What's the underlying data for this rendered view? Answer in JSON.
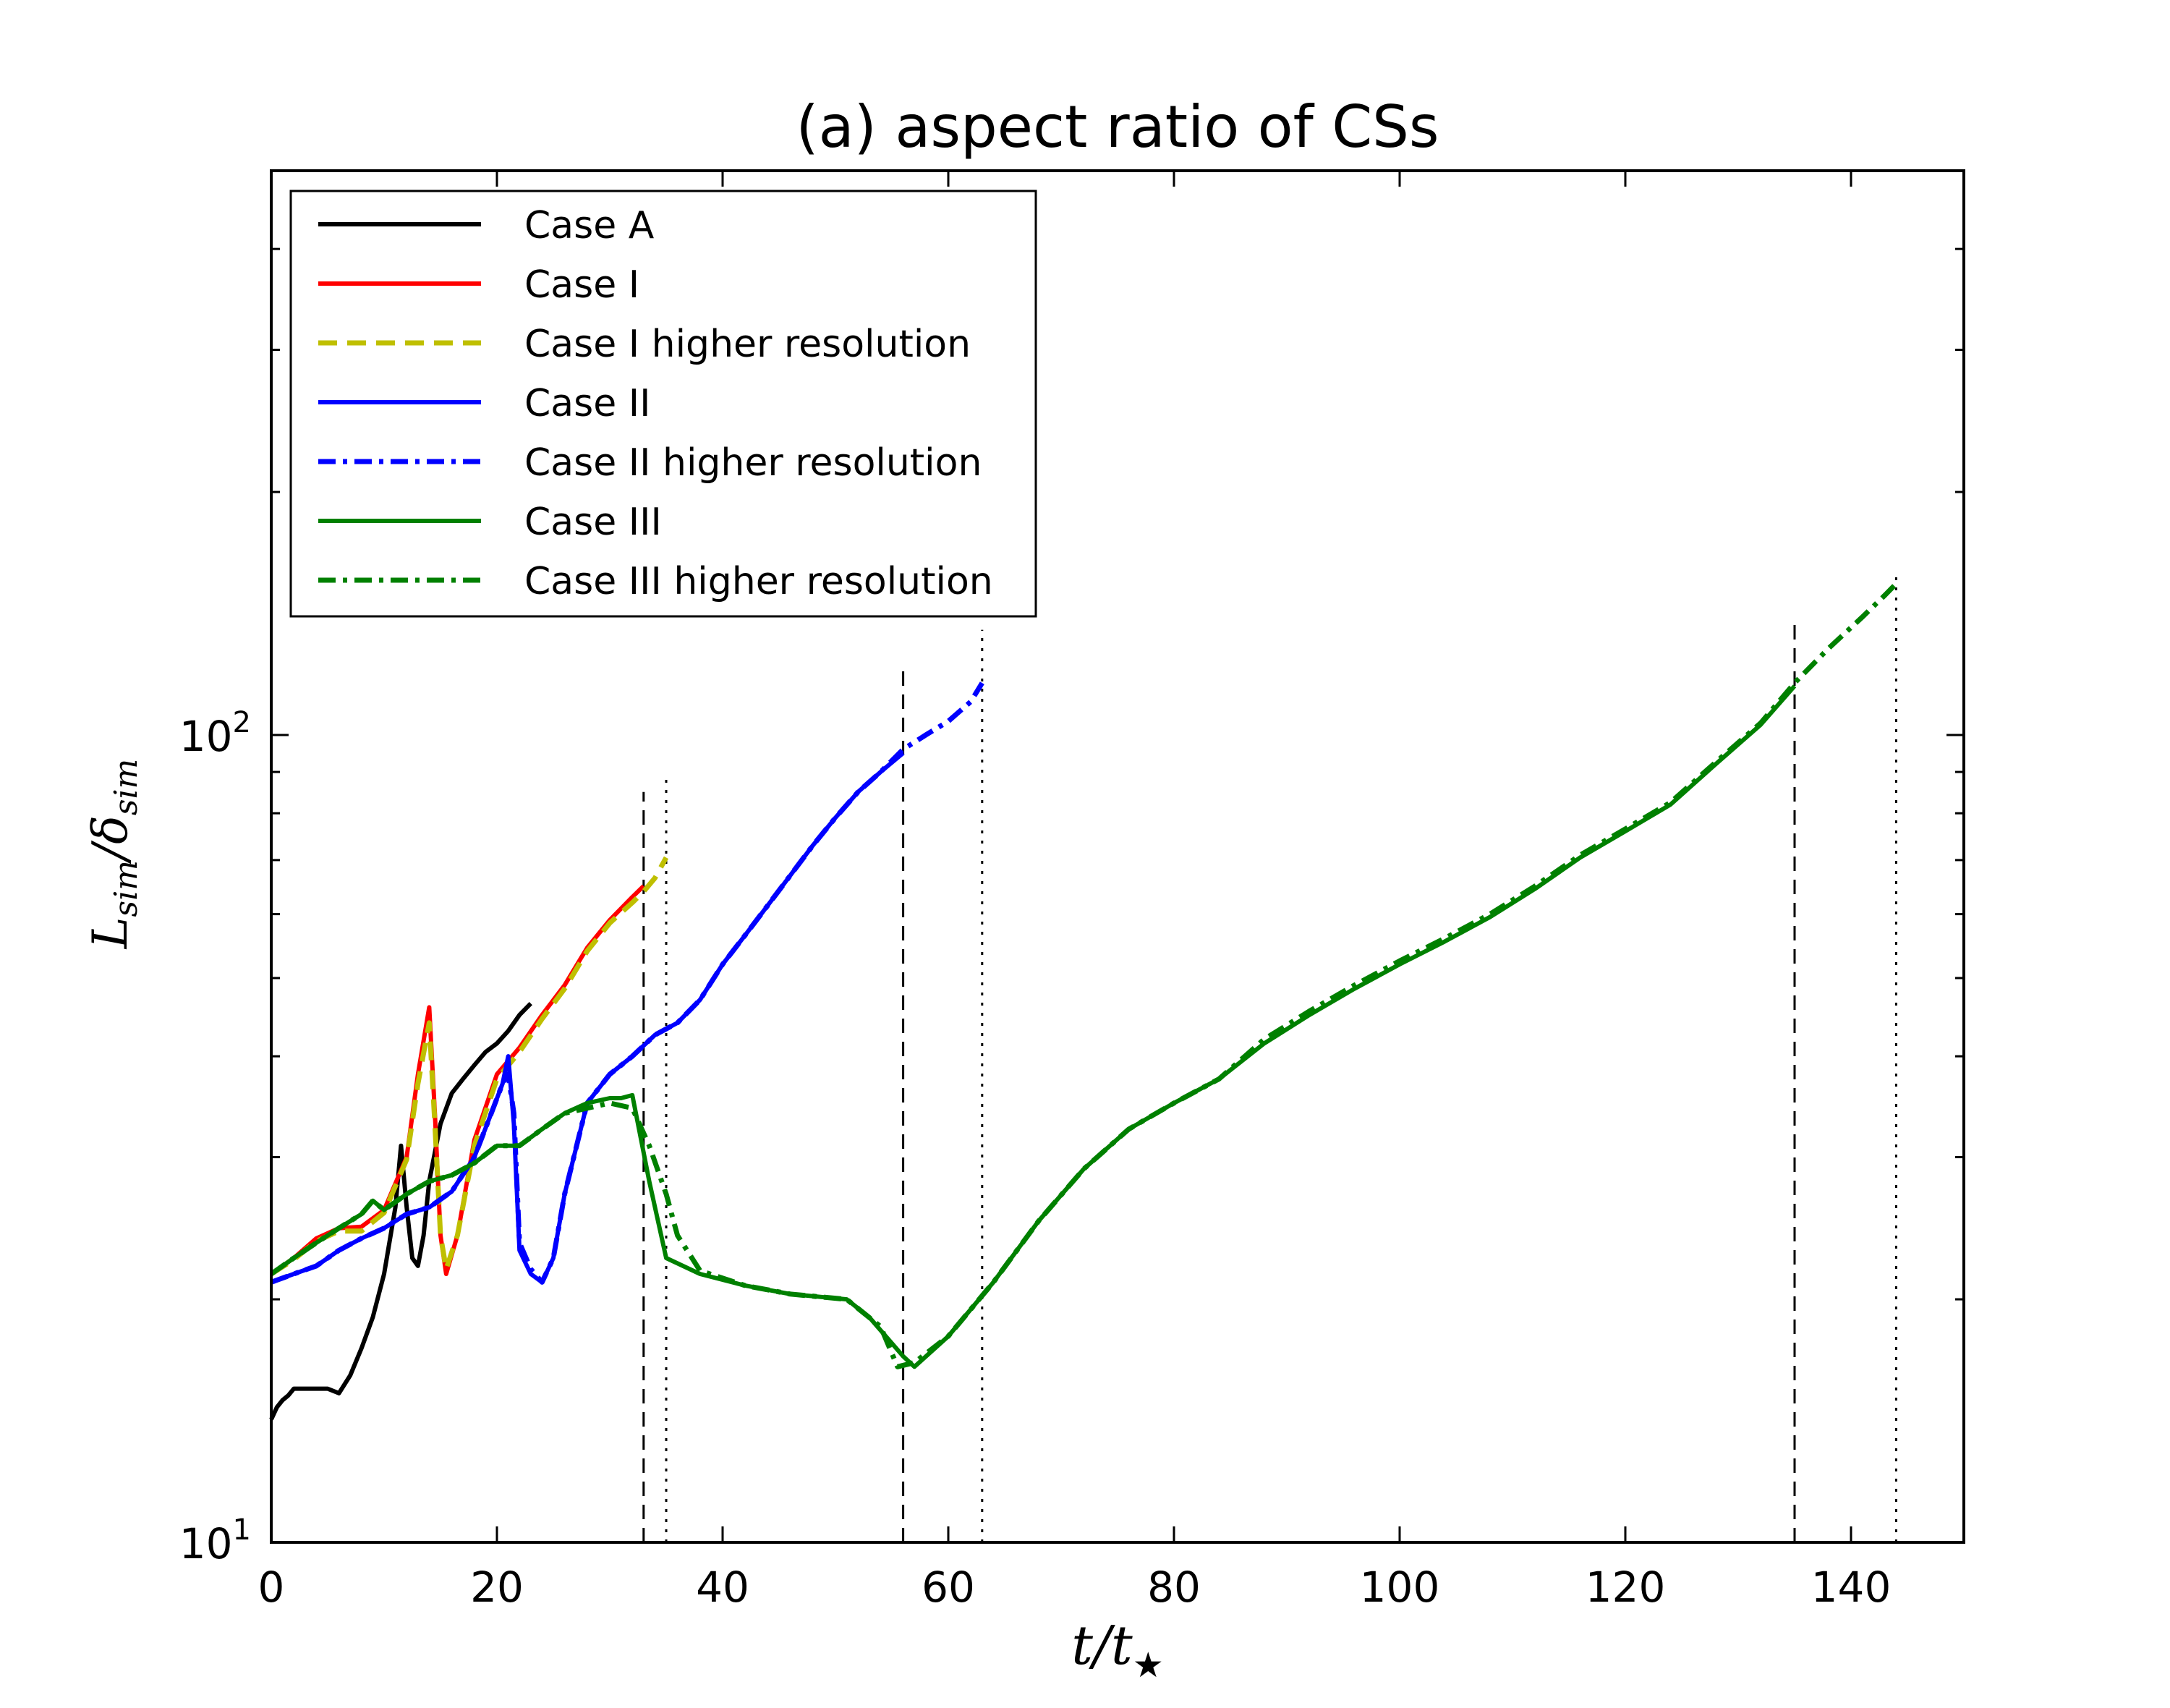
{
  "chart_data": {
    "type": "line",
    "title": "(a) aspect ratio of CSs",
    "xlabel": "t/t",
    "xlabel_sub": "★",
    "ylabel_main": "L",
    "ylabel_sub1": "sim",
    "ylabel_div": "/δ",
    "ylabel_sub2": "sim",
    "xscale": "linear",
    "yscale": "log",
    "xlim": [
      0,
      150
    ],
    "ylim": [
      10,
      500
    ],
    "xticks": [
      0,
      20,
      40,
      60,
      80,
      100,
      120,
      140
    ],
    "xtick_labels": [
      "0",
      "20",
      "40",
      "60",
      "80",
      "100",
      "120",
      "140"
    ],
    "yticks_major": [
      {
        "value": 10,
        "base": "10",
        "exp": "1"
      },
      {
        "value": 100,
        "base": "10",
        "exp": "2"
      }
    ],
    "yticks_minor": [
      20,
      30,
      40,
      50,
      60,
      70,
      80,
      90,
      200,
      300,
      400
    ],
    "legend_position": "top-left",
    "series": [
      {
        "name": "Case A",
        "color": "#000000",
        "style": "solid",
        "x": [
          0,
          0.5,
          1,
          1.5,
          2,
          3,
          4,
          5,
          6,
          7,
          8,
          9,
          10,
          11,
          11.5,
          12,
          12.5,
          13,
          13.5,
          14,
          15,
          16,
          17,
          18,
          19,
          20,
          21,
          22,
          23
        ],
        "y": [
          14.2,
          14.7,
          15.0,
          15.2,
          15.5,
          15.5,
          15.5,
          15.5,
          15.3,
          16.1,
          17.4,
          19.0,
          21.5,
          26.0,
          31.0,
          26.0,
          22.5,
          22.0,
          24.0,
          28.0,
          33.0,
          36.0,
          37.5,
          39.0,
          40.5,
          41.5,
          43.0,
          45.0,
          46.5
        ]
      },
      {
        "name": "Case I",
        "color": "#ff0000",
        "style": "solid",
        "x": [
          0,
          2,
          4,
          6,
          8,
          10,
          12,
          13,
          14,
          14.5,
          15,
          15.5,
          16.5,
          18,
          20,
          22,
          24,
          26,
          28,
          30,
          32,
          33
        ],
        "y": [
          21.5,
          22.5,
          23.8,
          24.5,
          24.6,
          25.8,
          30.0,
          38.0,
          46.0,
          34.0,
          24.0,
          21.5,
          24.0,
          31.5,
          38.0,
          41.0,
          45.0,
          49.0,
          54.5,
          59.0,
          63.0,
          65.0
        ]
      },
      {
        "name": "Case I higher resolution",
        "color": "#bfbf00",
        "style": "dashed",
        "x": [
          0,
          2,
          4,
          6,
          8,
          10,
          12,
          13,
          14,
          14.5,
          15,
          15.5,
          16.5,
          18,
          20,
          22,
          24,
          26,
          28,
          30,
          32,
          33,
          34,
          35
        ],
        "y": [
          21.5,
          22.4,
          23.6,
          24.3,
          24.3,
          25.6,
          29.8,
          37.0,
          44.0,
          33.0,
          24.0,
          21.8,
          24.0,
          31.0,
          37.5,
          40.5,
          44.5,
          48.5,
          54.0,
          58.5,
          62.0,
          64.0,
          66.5,
          70.5
        ]
      },
      {
        "name": "Case II",
        "color": "#0000ff",
        "style": "solid",
        "x": [
          0,
          2,
          4,
          6,
          8,
          10,
          12,
          14,
          16,
          18,
          19.5,
          20.5,
          21,
          21.5,
          22,
          23,
          24,
          25,
          26,
          28,
          30,
          32,
          34,
          36,
          38,
          40,
          42,
          44,
          46,
          48,
          50,
          52,
          54,
          56
        ],
        "y": [
          21.0,
          21.5,
          22.0,
          23.0,
          23.8,
          24.5,
          25.5,
          26.0,
          27.2,
          30.0,
          34.0,
          37.0,
          40.0,
          33.0,
          23.0,
          21.5,
          21.0,
          22.5,
          27.0,
          35.0,
          38.0,
          40.0,
          42.5,
          44.0,
          47.0,
          52.0,
          56.5,
          61.5,
          67.0,
          73.0,
          79.0,
          85.0,
          90.0,
          95.0
        ]
      },
      {
        "name": "Case II higher resolution",
        "color": "#0000ff",
        "style": "dashdot",
        "x": [
          0,
          2,
          4,
          6,
          8,
          10,
          12,
          14,
          16,
          18,
          19.5,
          20.5,
          21,
          21.5,
          22,
          23,
          24,
          25,
          26,
          28,
          30,
          32,
          34,
          36,
          38,
          40,
          42,
          44,
          46,
          48,
          50,
          52,
          54,
          56,
          58,
          60,
          62,
          63
        ],
        "y": [
          21.0,
          21.5,
          22.0,
          23.0,
          23.8,
          24.5,
          25.5,
          26.0,
          27.2,
          30.0,
          34.0,
          37.0,
          38.0,
          34.0,
          23.5,
          21.8,
          21.0,
          22.5,
          27.0,
          35.0,
          38.0,
          40.0,
          42.5,
          44.0,
          47.0,
          52.0,
          56.5,
          61.5,
          67.0,
          73.0,
          79.0,
          85.0,
          90.0,
          96.0,
          100.0,
          104.0,
          110.0,
          116.0
        ]
      },
      {
        "name": "Case III",
        "color": "#008000",
        "style": "solid",
        "x": [
          0,
          2,
          4,
          6,
          8,
          9,
          10,
          12,
          14,
          16,
          18,
          20,
          22,
          24,
          26,
          28,
          30,
          31,
          32,
          33.5,
          35,
          38,
          42,
          46,
          51,
          53,
          56,
          57,
          60,
          64,
          68,
          72,
          76,
          80,
          84,
          88,
          92,
          96,
          100,
          104,
          108,
          112,
          116,
          120,
          124,
          128,
          132,
          135
        ],
        "y": [
          21.5,
          22.5,
          23.5,
          24.5,
          25.5,
          26.5,
          25.8,
          27.0,
          28.0,
          28.5,
          29.5,
          31.0,
          31.0,
          32.5,
          34.0,
          35.0,
          35.5,
          35.5,
          35.8,
          28.0,
          22.5,
          21.5,
          20.8,
          20.3,
          20.0,
          19.0,
          17.0,
          16.5,
          18.0,
          21.0,
          25.0,
          29.0,
          32.5,
          35.0,
          37.5,
          41.5,
          45.0,
          48.5,
          52.0,
          55.5,
          59.5,
          64.5,
          70.5,
          76.0,
          82.0,
          92.0,
          103.0,
          115.0
        ]
      },
      {
        "name": "Case III higher resolution",
        "color": "#008000",
        "style": "dashdot",
        "x": [
          0,
          2,
          4,
          6,
          8,
          9,
          10,
          12,
          14,
          16,
          18,
          20,
          22,
          24,
          26,
          28,
          30,
          32,
          33.5,
          35,
          36,
          38,
          42,
          46,
          51,
          54,
          55.5,
          57,
          60,
          64,
          68,
          72,
          76,
          80,
          84,
          88,
          92,
          96,
          100,
          104,
          108,
          112,
          116,
          120,
          124,
          128,
          132,
          135,
          138,
          141,
          143,
          144
        ],
        "y": [
          21.5,
          22.5,
          23.5,
          24.5,
          25.5,
          26.5,
          25.8,
          27.0,
          28.0,
          28.5,
          29.5,
          31.0,
          31.0,
          32.5,
          34.0,
          34.5,
          35.0,
          34.5,
          31.0,
          27.0,
          24.0,
          21.7,
          20.8,
          20.3,
          20.0,
          18.5,
          16.5,
          16.7,
          18.0,
          21.0,
          25.0,
          29.0,
          32.5,
          35.0,
          37.5,
          42.0,
          45.5,
          49.0,
          52.5,
          56.0,
          60.0,
          65.0,
          71.0,
          76.5,
          82.5,
          92.5,
          103.5,
          116.0,
          128.0,
          140.0,
          149.0,
          154.0
        ]
      }
    ],
    "reference_lines": [
      {
        "x": 33,
        "y_top": 85,
        "style": "dashed",
        "color": "#000000"
      },
      {
        "x": 35,
        "y_top": 88,
        "style": "dotted",
        "color": "#000000"
      },
      {
        "x": 56,
        "y_top": 120,
        "style": "dashed",
        "color": "#000000"
      },
      {
        "x": 63,
        "y_top": 135,
        "style": "dotted",
        "color": "#000000"
      },
      {
        "x": 135,
        "y_top": 140,
        "style": "dashed",
        "color": "#000000"
      },
      {
        "x": 144,
        "y_top": 158,
        "style": "dotted",
        "color": "#000000"
      }
    ]
  }
}
